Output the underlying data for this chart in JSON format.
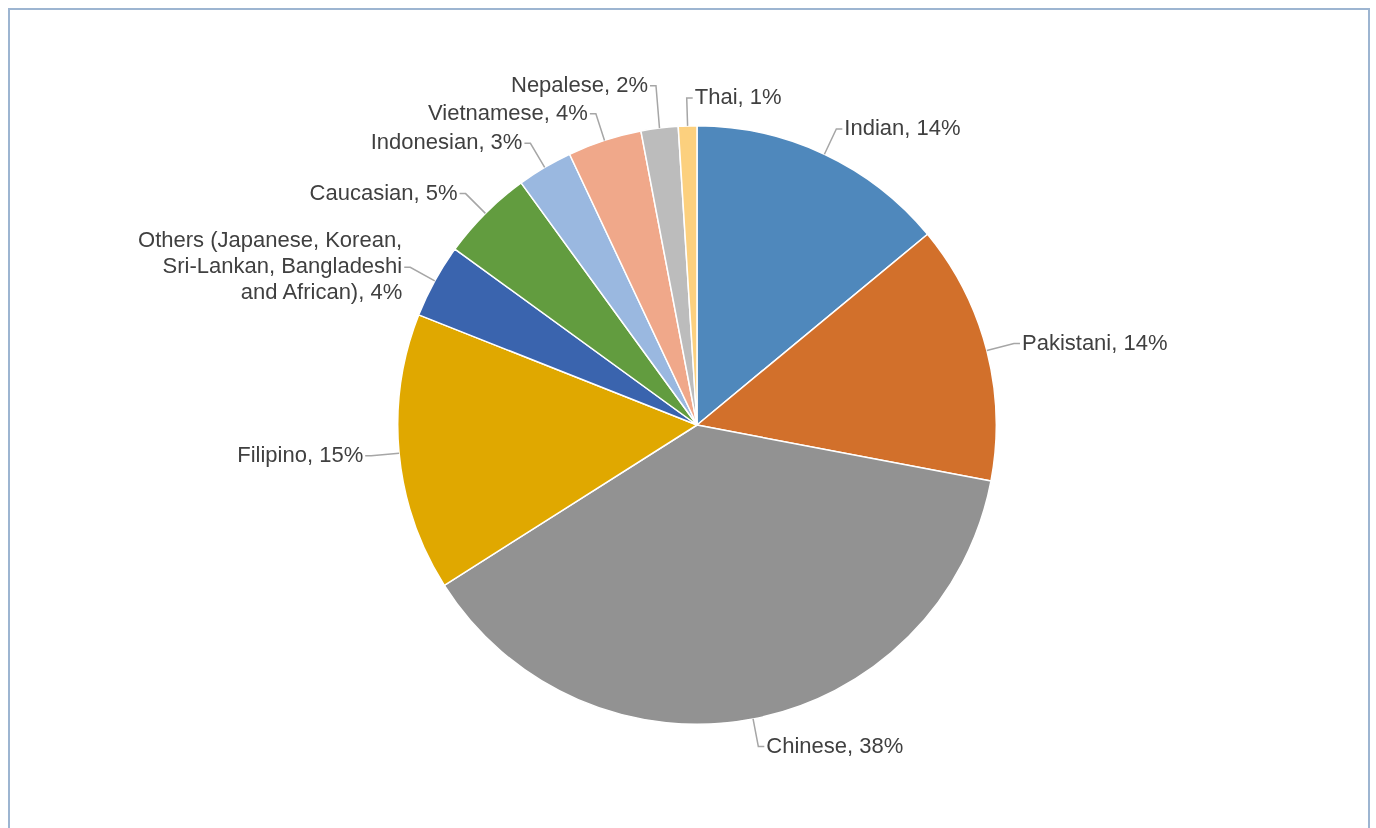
{
  "chart_data": {
    "type": "pie",
    "categories": [
      "Indian",
      "Pakistani",
      "Chinese",
      "Filipino",
      "Others (Japanese, Korean, Sri-Lankan, Bangladeshi and African)",
      "Caucasian",
      "Indonesian",
      "Vietnamese",
      "Nepalese",
      "Thai"
    ],
    "values": [
      14,
      14,
      38,
      15,
      4,
      5,
      3,
      4,
      2,
      1
    ],
    "value_labels": [
      "14%",
      "14%",
      "38%",
      "15%",
      "4%",
      "5%",
      "3%",
      "4%",
      "2%",
      "1%"
    ],
    "colors": [
      "#4f88bc",
      "#d2702b",
      "#929292",
      "#e0a800",
      "#3a64ae",
      "#629c3f",
      "#9ab8e0",
      "#f0a88a",
      "#bcbcbc",
      "#fcd07e"
    ]
  }
}
